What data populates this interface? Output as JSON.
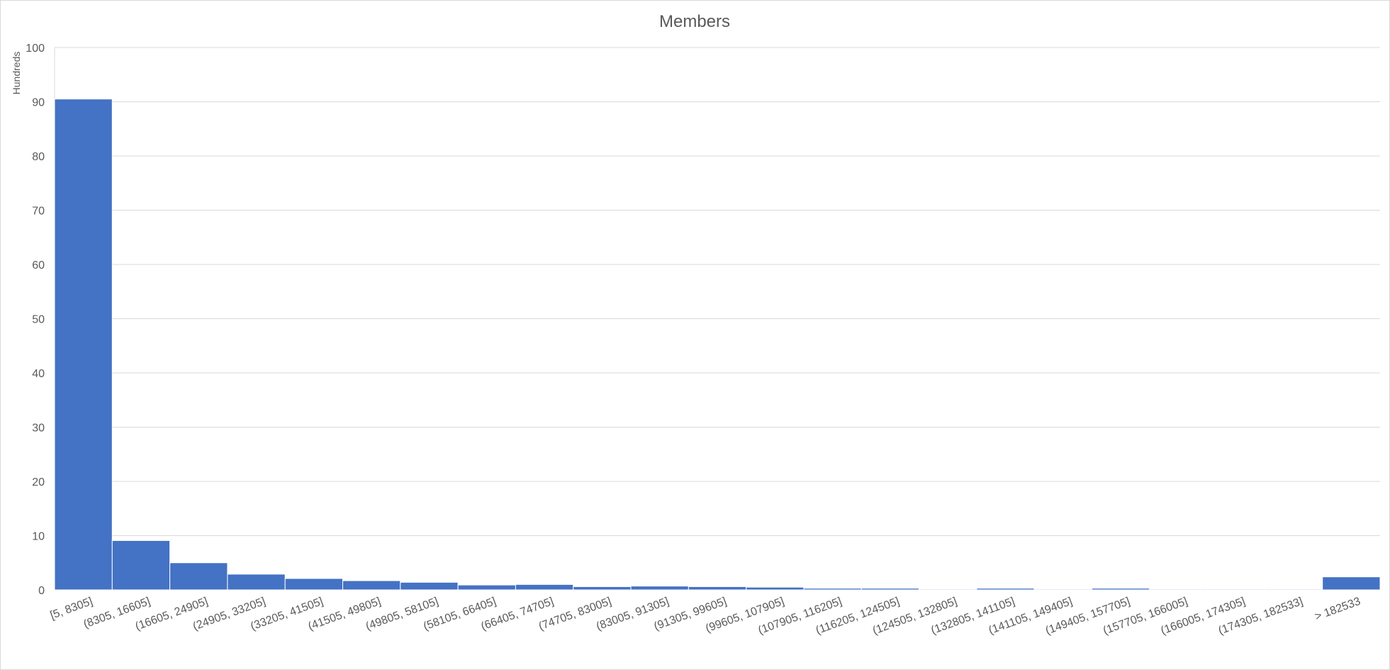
{
  "chart_data": {
    "type": "bar",
    "title": "Members",
    "ylabel": "Hundreds",
    "xlabel": "",
    "ylim": [
      0,
      100
    ],
    "yticks": [
      0,
      10,
      20,
      30,
      40,
      50,
      60,
      70,
      80,
      90,
      100
    ],
    "grid": true,
    "legend": "none",
    "bar_color": "#4472C4",
    "categories": [
      "[5, 8305]",
      "(8305, 16605]",
      "(16605, 24905]",
      "(24905, 33205]",
      "(33205, 41505]",
      "(41505, 49805]",
      "(49805, 58105]",
      "(58105, 66405]",
      "(66405, 74705]",
      "(74705, 83005]",
      "(83005, 91305]",
      "(91305, 99605]",
      "(99605, 107905]",
      "(107905, 116205]",
      "(116205, 124505]",
      "(124505, 132805]",
      "(132805, 141105]",
      "(141105, 149405]",
      "(149405, 157705]",
      "(157705, 166005]",
      "(166005, 174305]",
      "(174305, 182533]",
      "> 182533"
    ],
    "values": [
      90.5,
      9.1,
      5.0,
      2.9,
      2.1,
      1.7,
      1.4,
      0.9,
      1.0,
      0.6,
      0.7,
      0.6,
      0.5,
      0.3,
      0.3,
      0.15,
      0.3,
      0.15,
      0.3,
      0.15,
      0.15,
      0.15,
      2.4
    ]
  }
}
